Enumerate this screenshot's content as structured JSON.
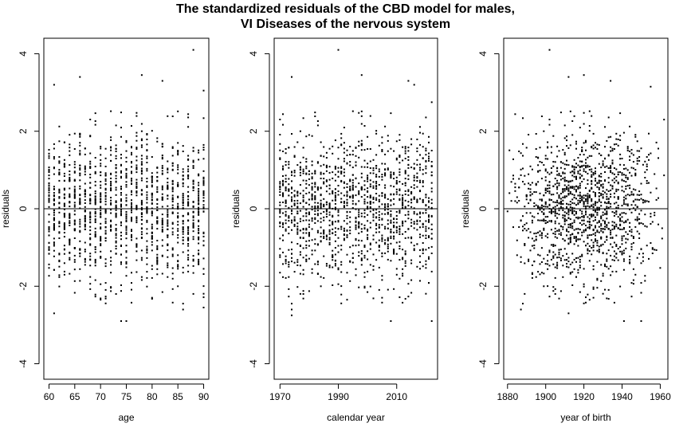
{
  "title": {
    "line1": "The standardized residuals of the CBD model for males,",
    "line2": "VI Diseases of the nervous system"
  },
  "chart_data": [
    {
      "type": "scatter",
      "xlabel": "age",
      "ylabel": "residuals",
      "xlim": [
        59,
        91
      ],
      "ylim": [
        -4.4,
        4.4
      ],
      "x_ticks": [
        60,
        65,
        70,
        75,
        80,
        85,
        90
      ],
      "y_ticks": [
        -4,
        -2,
        0,
        2,
        4
      ],
      "x_values": "integer ages 60 to 90",
      "reference_line_y": 0,
      "point_count": 1900,
      "residual_sd": 0.95,
      "notable_points": [
        {
          "x": 88,
          "y": 4.1
        },
        {
          "x": 78,
          "y": 3.45
        },
        {
          "x": 66,
          "y": 3.4
        },
        {
          "x": 82,
          "y": 3.3
        },
        {
          "x": 61,
          "y": 3.2
        },
        {
          "x": 90,
          "y": 3.05
        },
        {
          "x": 61,
          "y": -2.7
        },
        {
          "x": 74,
          "y": -2.9
        },
        {
          "x": 75,
          "y": -2.9
        },
        {
          "x": 90,
          "y": -2.55
        },
        {
          "x": 86,
          "y": -2.6
        }
      ]
    },
    {
      "type": "scatter",
      "xlabel": "calendar year",
      "ylabel": "residuals",
      "xlim": [
        1968,
        2024
      ],
      "ylim": [
        -4.4,
        4.4
      ],
      "x_ticks": [
        1970,
        1990,
        2010
      ],
      "y_ticks": [
        -4,
        -2,
        0,
        2,
        4
      ],
      "x_values": "integer years 1970 to 2022",
      "reference_line_y": 0,
      "point_count": 1900,
      "residual_sd": 0.95,
      "notable_points": [
        {
          "x": 1990,
          "y": 4.1
        },
        {
          "x": 1974,
          "y": 3.4
        },
        {
          "x": 1998,
          "y": 3.45
        },
        {
          "x": 2014,
          "y": 3.3
        },
        {
          "x": 2016,
          "y": 3.2
        },
        {
          "x": 2022,
          "y": 2.75
        },
        {
          "x": 1974,
          "y": -2.6
        },
        {
          "x": 1974,
          "y": -2.75
        },
        {
          "x": 2008,
          "y": -2.9
        },
        {
          "x": 2022,
          "y": -2.9
        }
      ]
    },
    {
      "type": "scatter",
      "xlabel": "year of birth",
      "ylabel": "residuals",
      "xlim": [
        1878,
        1964
      ],
      "ylim": [
        -4.4,
        4.4
      ],
      "x_ticks": [
        1880,
        1900,
        1920,
        1940,
        1960
      ],
      "y_ticks": [
        -4,
        -2,
        0,
        2,
        4
      ],
      "x_values": "birth years 1880 to 1962 (calendar year minus age)",
      "reference_line_y": 0,
      "point_count": 1900,
      "residual_sd": 0.95,
      "notable_points": [
        {
          "x": 1902,
          "y": 4.1
        },
        {
          "x": 1912,
          "y": 3.4
        },
        {
          "x": 1920,
          "y": 3.45
        },
        {
          "x": 1934,
          "y": 3.3
        },
        {
          "x": 1955,
          "y": 3.15
        },
        {
          "x": 1962,
          "y": 2.3
        },
        {
          "x": 1887,
          "y": -2.6
        },
        {
          "x": 1912,
          "y": -2.7
        },
        {
          "x": 1941,
          "y": -2.9
        },
        {
          "x": 1950,
          "y": -2.9
        }
      ]
    }
  ]
}
